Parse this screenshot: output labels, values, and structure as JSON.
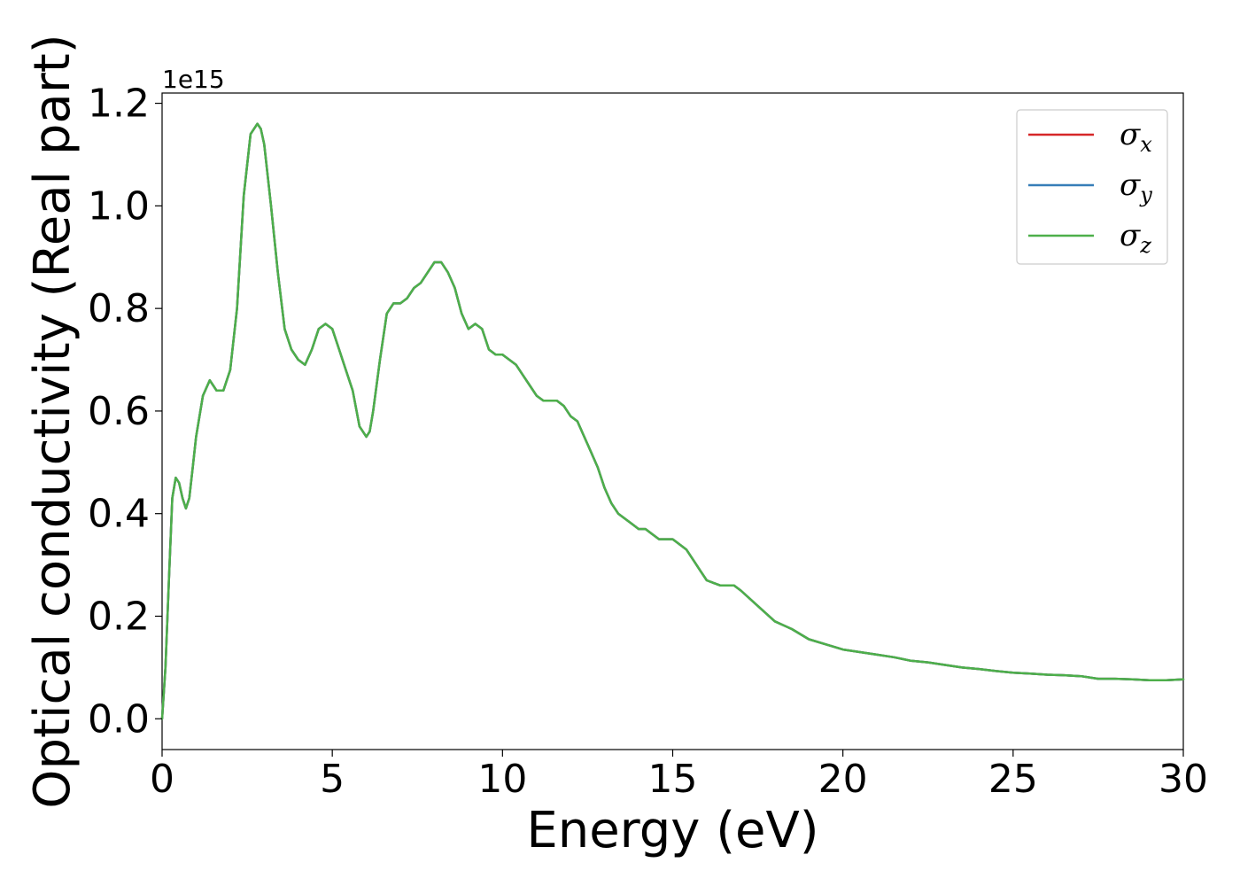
{
  "chart_data": {
    "type": "line",
    "xlabel": "Energy (eV)",
    "ylabel": "Optical conductivity (Real part)",
    "y_offset_label": "1e15",
    "xlim": [
      0,
      30
    ],
    "ylim": [
      -0.06,
      1.22
    ],
    "x_ticks": [
      0,
      5,
      10,
      15,
      20,
      25,
      30
    ],
    "x_tick_labels": [
      "0",
      "5",
      "10",
      "15",
      "20",
      "25",
      "30"
    ],
    "y_ticks": [
      0.0,
      0.2,
      0.4,
      0.6,
      0.8,
      1.0,
      1.2
    ],
    "y_tick_labels": [
      "0.0",
      "0.2",
      "0.4",
      "0.6",
      "0.8",
      "1.0",
      "1.2"
    ],
    "grid": false,
    "legend_position": "top-right",
    "x": [
      0,
      0.1,
      0.2,
      0.3,
      0.4,
      0.5,
      0.6,
      0.7,
      0.8,
      0.9,
      1.0,
      1.2,
      1.4,
      1.5,
      1.6,
      1.8,
      2.0,
      2.2,
      2.4,
      2.6,
      2.8,
      2.9,
      3.0,
      3.2,
      3.4,
      3.6,
      3.8,
      4.0,
      4.2,
      4.4,
      4.6,
      4.8,
      5.0,
      5.2,
      5.4,
      5.6,
      5.8,
      6.0,
      6.1,
      6.2,
      6.4,
      6.6,
      6.8,
      7.0,
      7.2,
      7.4,
      7.6,
      7.8,
      8.0,
      8.2,
      8.4,
      8.6,
      8.8,
      9.0,
      9.2,
      9.4,
      9.6,
      9.8,
      10.0,
      10.2,
      10.4,
      10.6,
      10.8,
      11.0,
      11.2,
      11.4,
      11.6,
      11.8,
      12.0,
      12.2,
      12.4,
      12.6,
      12.8,
      13.0,
      13.2,
      13.4,
      13.6,
      13.8,
      14.0,
      14.2,
      14.4,
      14.6,
      14.8,
      15.0,
      15.2,
      15.4,
      15.6,
      15.8,
      16.0,
      16.2,
      16.4,
      16.6,
      16.8,
      17.0,
      17.5,
      18.0,
      18.5,
      19.0,
      19.5,
      20.0,
      20.5,
      21.0,
      21.5,
      22.0,
      22.5,
      23.0,
      23.5,
      24.0,
      24.5,
      25.0,
      25.5,
      26.0,
      26.5,
      27.0,
      27.5,
      28.0,
      28.5,
      29.0,
      29.5,
      30.0
    ],
    "series": [
      {
        "name": "σx",
        "label_base": "σ",
        "label_sub": "x",
        "color": "#d62728",
        "values": [
          0.0,
          0.1,
          0.27,
          0.43,
          0.47,
          0.46,
          0.43,
          0.41,
          0.43,
          0.49,
          0.55,
          0.63,
          0.66,
          0.65,
          0.64,
          0.64,
          0.68,
          0.8,
          1.02,
          1.14,
          1.16,
          1.15,
          1.12,
          1.0,
          0.87,
          0.76,
          0.72,
          0.7,
          0.69,
          0.72,
          0.76,
          0.77,
          0.76,
          0.72,
          0.68,
          0.64,
          0.57,
          0.55,
          0.56,
          0.6,
          0.7,
          0.79,
          0.81,
          0.81,
          0.82,
          0.84,
          0.85,
          0.87,
          0.89,
          0.89,
          0.87,
          0.84,
          0.79,
          0.76,
          0.77,
          0.76,
          0.72,
          0.71,
          0.71,
          0.7,
          0.69,
          0.67,
          0.65,
          0.63,
          0.62,
          0.62,
          0.62,
          0.61,
          0.59,
          0.58,
          0.55,
          0.52,
          0.49,
          0.45,
          0.42,
          0.4,
          0.39,
          0.38,
          0.37,
          0.37,
          0.36,
          0.35,
          0.35,
          0.35,
          0.34,
          0.33,
          0.31,
          0.29,
          0.27,
          0.265,
          0.26,
          0.26,
          0.26,
          0.25,
          0.22,
          0.19,
          0.175,
          0.155,
          0.145,
          0.135,
          0.13,
          0.125,
          0.12,
          0.113,
          0.11,
          0.105,
          0.1,
          0.097,
          0.093,
          0.09,
          0.088,
          0.086,
          0.085,
          0.083,
          0.078,
          0.078,
          0.077,
          0.075,
          0.075,
          0.077
        ]
      },
      {
        "name": "σy",
        "label_base": "σ",
        "label_sub": "y",
        "color": "#377eb8",
        "values": [
          0.0,
          0.1,
          0.27,
          0.43,
          0.47,
          0.46,
          0.43,
          0.41,
          0.43,
          0.49,
          0.55,
          0.63,
          0.66,
          0.65,
          0.64,
          0.64,
          0.68,
          0.8,
          1.02,
          1.14,
          1.16,
          1.15,
          1.12,
          1.0,
          0.87,
          0.76,
          0.72,
          0.7,
          0.69,
          0.72,
          0.76,
          0.77,
          0.76,
          0.72,
          0.68,
          0.64,
          0.57,
          0.55,
          0.56,
          0.6,
          0.7,
          0.79,
          0.81,
          0.81,
          0.82,
          0.84,
          0.85,
          0.87,
          0.89,
          0.89,
          0.87,
          0.84,
          0.79,
          0.76,
          0.77,
          0.76,
          0.72,
          0.71,
          0.71,
          0.7,
          0.69,
          0.67,
          0.65,
          0.63,
          0.62,
          0.62,
          0.62,
          0.61,
          0.59,
          0.58,
          0.55,
          0.52,
          0.49,
          0.45,
          0.42,
          0.4,
          0.39,
          0.38,
          0.37,
          0.37,
          0.36,
          0.35,
          0.35,
          0.35,
          0.34,
          0.33,
          0.31,
          0.29,
          0.27,
          0.265,
          0.26,
          0.26,
          0.26,
          0.25,
          0.22,
          0.19,
          0.175,
          0.155,
          0.145,
          0.135,
          0.13,
          0.125,
          0.12,
          0.113,
          0.11,
          0.105,
          0.1,
          0.097,
          0.093,
          0.09,
          0.088,
          0.086,
          0.085,
          0.083,
          0.078,
          0.078,
          0.077,
          0.075,
          0.075,
          0.077
        ]
      },
      {
        "name": "σz",
        "label_base": "σ",
        "label_sub": "z",
        "color": "#4daf4a",
        "values": [
          0.0,
          0.1,
          0.27,
          0.43,
          0.47,
          0.46,
          0.43,
          0.41,
          0.43,
          0.49,
          0.55,
          0.63,
          0.66,
          0.65,
          0.64,
          0.64,
          0.68,
          0.8,
          1.02,
          1.14,
          1.16,
          1.15,
          1.12,
          1.0,
          0.87,
          0.76,
          0.72,
          0.7,
          0.69,
          0.72,
          0.76,
          0.77,
          0.76,
          0.72,
          0.68,
          0.64,
          0.57,
          0.55,
          0.56,
          0.6,
          0.7,
          0.79,
          0.81,
          0.81,
          0.82,
          0.84,
          0.85,
          0.87,
          0.89,
          0.89,
          0.87,
          0.84,
          0.79,
          0.76,
          0.77,
          0.76,
          0.72,
          0.71,
          0.71,
          0.7,
          0.69,
          0.67,
          0.65,
          0.63,
          0.62,
          0.62,
          0.62,
          0.61,
          0.59,
          0.58,
          0.55,
          0.52,
          0.49,
          0.45,
          0.42,
          0.4,
          0.39,
          0.38,
          0.37,
          0.37,
          0.36,
          0.35,
          0.35,
          0.35,
          0.34,
          0.33,
          0.31,
          0.29,
          0.27,
          0.265,
          0.26,
          0.26,
          0.26,
          0.25,
          0.22,
          0.19,
          0.175,
          0.155,
          0.145,
          0.135,
          0.13,
          0.125,
          0.12,
          0.113,
          0.11,
          0.105,
          0.1,
          0.097,
          0.093,
          0.09,
          0.088,
          0.086,
          0.085,
          0.083,
          0.078,
          0.078,
          0.077,
          0.075,
          0.075,
          0.077
        ]
      }
    ]
  }
}
